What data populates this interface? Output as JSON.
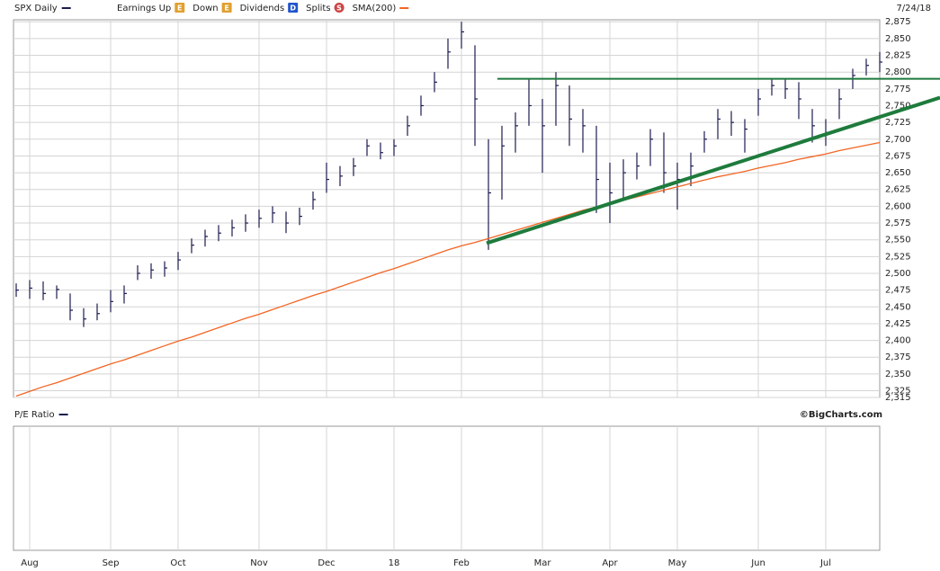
{
  "chart_data": {
    "type": "ohlc",
    "date_label": "7/24/18",
    "legend_items": [
      {
        "name": "Earnings Up",
        "icon": "E",
        "color": "#e0a030"
      },
      {
        "name": "Down",
        "icon": "E",
        "color": "#e0a030"
      },
      {
        "name": "Dividends",
        "icon": "D",
        "color": "#2255cc"
      },
      {
        "name": "Splits",
        "icon": "S",
        "color": "#cc4444"
      }
    ],
    "categories": [
      null,
      "Aug",
      null,
      null,
      null,
      null,
      null,
      "Sep",
      null,
      null,
      null,
      null,
      "Oct",
      null,
      null,
      null,
      null,
      null,
      "Nov",
      null,
      null,
      null,
      null,
      "Dec",
      null,
      null,
      null,
      null,
      "18",
      null,
      null,
      null,
      null,
      "Feb",
      null,
      null,
      null,
      null,
      null,
      "Mar",
      null,
      null,
      null,
      null,
      "Apr",
      null,
      null,
      null,
      null,
      "May",
      null,
      null,
      null,
      null,
      null,
      "Jun",
      null,
      null,
      null,
      null,
      "Jul",
      null,
      null,
      null,
      null
    ],
    "series": [
      {
        "name": "SPX Daily",
        "color": "#1c1c50",
        "high": [
          2485,
          2490,
          2488,
          2482,
          2470,
          2448,
          2455,
          2475,
          2482,
          2512,
          2515,
          2518,
          2532,
          2552,
          2565,
          2572,
          2580,
          2588,
          2595,
          2600,
          2592,
          2598,
          2622,
          2665,
          2660,
          2672,
          2700,
          2695,
          2700,
          2735,
          2765,
          2800,
          2850,
          2875,
          2840,
          2700,
          2720,
          2740,
          2790,
          2760,
          2800,
          2780,
          2745,
          2720,
          2665,
          2670,
          2680,
          2715,
          2710,
          2665,
          2680,
          2712,
          2745,
          2742,
          2730,
          2775,
          2790,
          2790,
          2785,
          2745,
          2730,
          2775,
          2805,
          2820,
          2830
        ],
        "low": [
          2465,
          2462,
          2460,
          2462,
          2430,
          2420,
          2430,
          2442,
          2455,
          2490,
          2492,
          2495,
          2505,
          2530,
          2540,
          2548,
          2555,
          2562,
          2568,
          2575,
          2560,
          2572,
          2595,
          2620,
          2630,
          2645,
          2675,
          2670,
          2675,
          2705,
          2735,
          2770,
          2805,
          2835,
          2690,
          2535,
          2610,
          2680,
          2720,
          2650,
          2720,
          2690,
          2680,
          2590,
          2575,
          2610,
          2640,
          2660,
          2620,
          2595,
          2630,
          2680,
          2700,
          2705,
          2680,
          2735,
          2765,
          2760,
          2730,
          2695,
          2690,
          2730,
          2775,
          2795,
          2800
        ],
        "close": [
          2475,
          2478,
          2470,
          2476,
          2445,
          2432,
          2440,
          2458,
          2470,
          2500,
          2505,
          2508,
          2520,
          2542,
          2555,
          2560,
          2568,
          2575,
          2582,
          2590,
          2575,
          2585,
          2610,
          2640,
          2645,
          2660,
          2690,
          2680,
          2690,
          2720,
          2750,
          2785,
          2830,
          2860,
          2760,
          2620,
          2690,
          2720,
          2750,
          2720,
          2780,
          2730,
          2720,
          2640,
          2620,
          2650,
          2660,
          2700,
          2650,
          2640,
          2660,
          2700,
          2730,
          2725,
          2715,
          2760,
          2780,
          2775,
          2760,
          2720,
          2710,
          2760,
          2795,
          2810,
          2815
        ]
      },
      {
        "name": "SMA(200)",
        "color": "#f26522",
        "values": [
          2317,
          2324,
          2331,
          2337,
          2344,
          2351,
          2358,
          2365,
          2371,
          2378,
          2385,
          2392,
          2399,
          2405,
          2412,
          2419,
          2426,
          2433,
          2439,
          2446,
          2453,
          2460,
          2467,
          2473,
          2480,
          2487,
          2494,
          2501,
          2507,
          2514,
          2521,
          2528,
          2535,
          2541,
          2546,
          2552,
          2558,
          2564,
          2570,
          2576,
          2582,
          2588,
          2594,
          2599,
          2604,
          2609,
          2614,
          2619,
          2624,
          2629,
          2634,
          2639,
          2644,
          2648,
          2652,
          2657,
          2661,
          2665,
          2670,
          2674,
          2678,
          2683,
          2687,
          2691,
          2695
        ]
      }
    ],
    "trendlines": [
      {
        "color": "#1e7b3c",
        "values": [
          2790,
          2790
        ]
      },
      {
        "color": "#1e7b3c",
        "values": [
          2545,
          2762
        ]
      }
    ],
    "ylim": [
      2315,
      2878
    ],
    "yticks": [
      {
        "value": 2315,
        "label": "2,315"
      },
      {
        "value": 2325,
        "label": "2,325"
      },
      {
        "value": 2350,
        "label": "2,350"
      },
      {
        "value": 2375,
        "label": "2,375"
      },
      {
        "value": 2400,
        "label": "2,400"
      },
      {
        "value": 2425,
        "label": "2,425"
      },
      {
        "value": 2450,
        "label": "2,450"
      },
      {
        "value": 2475,
        "label": "2,475"
      },
      {
        "value": 2500,
        "label": "2,500"
      },
      {
        "value": 2525,
        "label": "2,525"
      },
      {
        "value": 2550,
        "label": "2,550"
      },
      {
        "value": 2575,
        "label": "2,575"
      },
      {
        "value": 2600,
        "label": "2,600"
      },
      {
        "value": 2625,
        "label": "2,625"
      },
      {
        "value": 2650,
        "label": "2,650"
      },
      {
        "value": 2675,
        "label": "2,675"
      },
      {
        "value": 2700,
        "label": "2,700"
      },
      {
        "value": 2725,
        "label": "2,725"
      },
      {
        "value": 2750,
        "label": "2,750"
      },
      {
        "value": 2775,
        "label": "2,775"
      },
      {
        "value": 2800,
        "label": "2,800"
      },
      {
        "value": 2825,
        "label": "2,825"
      },
      {
        "value": 2850,
        "label": "2,850"
      },
      {
        "value": 2875,
        "label": "2,875"
      }
    ],
    "grid": true,
    "lower_panel": {
      "title": "P/E Ratio",
      "title_color": "#1c1c50",
      "credit": "©BigCharts.com"
    }
  }
}
